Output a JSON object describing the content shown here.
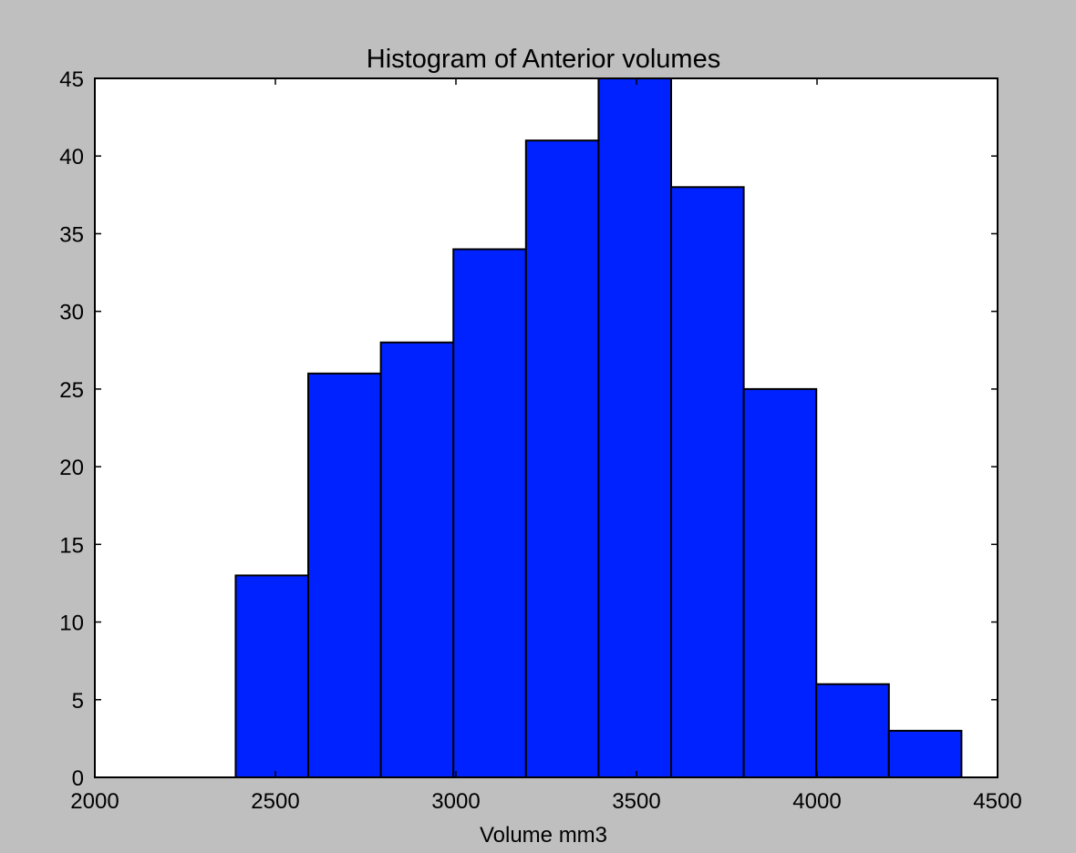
{
  "chart_data": {
    "type": "bar",
    "title": "Histogram of Anterior volumes",
    "xlabel": "Volume mm3",
    "ylabel": "",
    "xlim": [
      2000,
      4500
    ],
    "ylim": [
      0,
      45
    ],
    "xticks": [
      2000,
      2500,
      3000,
      3500,
      4000,
      4500
    ],
    "yticks": [
      0,
      5,
      10,
      15,
      20,
      25,
      30,
      35,
      40,
      45
    ],
    "bins": [
      {
        "start": 2390,
        "end": 2591,
        "count": 13
      },
      {
        "start": 2591,
        "end": 2792,
        "count": 26
      },
      {
        "start": 2792,
        "end": 2993,
        "count": 28
      },
      {
        "start": 2993,
        "end": 3194,
        "count": 34
      },
      {
        "start": 3194,
        "end": 3395,
        "count": 41
      },
      {
        "start": 3395,
        "end": 3596,
        "count": 45
      },
      {
        "start": 3596,
        "end": 3797,
        "count": 38
      },
      {
        "start": 3797,
        "end": 3998,
        "count": 25
      },
      {
        "start": 3998,
        "end": 4199,
        "count": 6
      },
      {
        "start": 4199,
        "end": 4400,
        "count": 3
      }
    ],
    "grid": false,
    "colors": {
      "bar": "#0022ff",
      "edge": "#000000",
      "figure_bg": "#bfbfbf",
      "axes_bg": "#ffffff"
    }
  }
}
